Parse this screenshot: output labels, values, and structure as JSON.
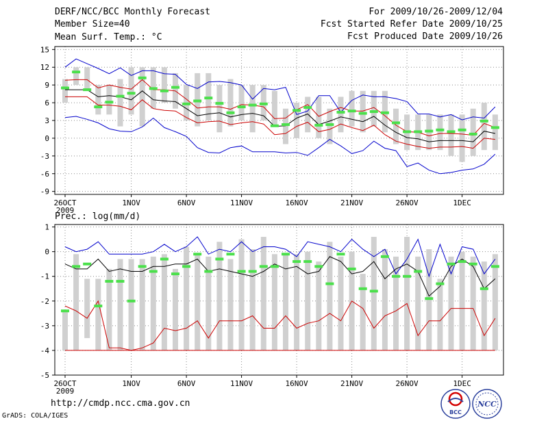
{
  "header": {
    "title": "DERF/NCC/BCC Monthly Forecast",
    "member_size": "Member Size=40",
    "period": "For 2009/10/26-2009/12/04",
    "started": "Fcst Started Refer Date 2009/10/25",
    "produced": "Fcst Produced Date 2009/10/26"
  },
  "footer": {
    "url": "http://cmdp.ncc.cma.gov.cn",
    "grads": "GrADS: COLA/IGES",
    "logo_left": "BCC",
    "logo_right": "NCC"
  },
  "colors": {
    "box": "#d0d0d0",
    "green": "#4be04b",
    "blue": "#0000cc",
    "red": "#cc0000",
    "mean": "#000000",
    "grid": "#888888"
  },
  "chart_data": [
    {
      "type": "line",
      "title": "Mean Surf. Temp.: °C",
      "ylim": [
        -9.5,
        15.5
      ],
      "yticks": [
        15,
        12,
        9,
        6,
        3,
        0,
        -3,
        -6,
        -9
      ],
      "x_days": 40,
      "xticks": [
        {
          "day": 0,
          "label": "26OCT",
          "sub": "2009"
        },
        {
          "day": 6,
          "label": "1NOV"
        },
        {
          "day": 11,
          "label": "6NOV"
        },
        {
          "day": 16,
          "label": "11NOV"
        },
        {
          "day": 21,
          "label": "16NOV"
        },
        {
          "day": 26,
          "label": "21NOV"
        },
        {
          "day": 31,
          "label": "26NOV"
        },
        {
          "day": 36,
          "label": "1DEC"
        }
      ],
      "box_low": [
        6,
        9,
        8,
        4,
        4,
        2,
        4,
        2,
        5,
        6,
        5,
        3,
        2,
        3,
        1,
        2,
        3,
        1,
        3,
        2,
        -1,
        0,
        1,
        0,
        -1,
        1,
        2,
        1,
        2,
        1,
        -1,
        -2,
        -2,
        -2,
        -2,
        -3,
        -4,
        -3,
        -2,
        -2
      ],
      "box_high": [
        10,
        12,
        12,
        9,
        9,
        10,
        12,
        12,
        12,
        12,
        11,
        9,
        11,
        11,
        9,
        10,
        9,
        9,
        9,
        8,
        5,
        6,
        7,
        7,
        5,
        7,
        8,
        8,
        8,
        8,
        5,
        4,
        4,
        4,
        4,
        4,
        4,
        5,
        6,
        4
      ],
      "green": [
        8.5,
        11.2,
        8.2,
        5.3,
        6.1,
        7.1,
        7.6,
        10.2,
        8.4,
        8.0,
        8.6,
        5.8,
        6.3,
        6.8,
        5.9,
        4.3,
        5.3,
        5.6,
        5.8,
        2.1,
        2.3,
        4.7,
        5.2,
        2.2,
        2.3,
        4.4,
        4.6,
        4.2,
        4.5,
        4.3,
        2.6,
        1.1,
        1.1,
        1.2,
        1.4,
        1.1,
        1.4,
        0.7,
        2.9,
        1.8
      ],
      "mean": [
        8.2,
        8.2,
        8.2,
        7.0,
        7.2,
        7.0,
        6.5,
        8.0,
        6.5,
        6.3,
        6.2,
        5.0,
        3.8,
        4.1,
        4.3,
        3.6,
        4.0,
        4.2,
        3.8,
        2.0,
        2.1,
        3.4,
        4.1,
        2.3,
        2.9,
        3.6,
        3.2,
        2.8,
        3.7,
        2.2,
        1.0,
        0.1,
        -0.1,
        -0.6,
        -0.4,
        -0.4,
        -0.4,
        -0.6,
        1.2,
        0.8
      ],
      "upper_red": [
        9.8,
        9.9,
        9.9,
        8.5,
        9.0,
        8.6,
        8.3,
        9.9,
        8.2,
        8.2,
        8.0,
        6.6,
        5.1,
        5.3,
        5.3,
        4.9,
        5.7,
        5.6,
        5.3,
        3.3,
        3.4,
        4.8,
        5.7,
        3.7,
        4.5,
        5.2,
        4.6,
        4.6,
        5.2,
        3.8,
        2.2,
        1.1,
        1.0,
        0.4,
        0.8,
        0.8,
        0.7,
        0.5,
        2.5,
        1.8
      ],
      "lower_red": [
        7.0,
        7.0,
        7.0,
        5.6,
        5.6,
        5.4,
        4.8,
        6.5,
        5.0,
        4.7,
        4.6,
        3.5,
        2.6,
        2.8,
        2.9,
        2.3,
        2.6,
        2.8,
        2.4,
        0.6,
        0.8,
        2.0,
        2.7,
        1.1,
        1.5,
        2.4,
        1.8,
        1.3,
        2.2,
        0.6,
        -0.5,
        -1.0,
        -1.4,
        -1.7,
        -1.5,
        -1.5,
        -1.4,
        -1.7,
        0.0,
        -0.2
      ],
      "upper_blue": [
        12.0,
        13.4,
        12.6,
        11.8,
        10.9,
        11.9,
        10.6,
        11.4,
        11.4,
        10.9,
        10.8,
        9.1,
        8.4,
        9.5,
        9.6,
        9.4,
        9.0,
        6.6,
        8.4,
        8.2,
        8.6,
        4.0,
        4.6,
        7.2,
        7.2,
        4.4,
        6.4,
        7.3,
        7.0,
        7.0,
        6.7,
        6.2,
        4.1,
        4.1,
        3.6,
        4.0,
        3.1,
        3.6,
        3.4,
        5.3
      ],
      "lower_blue": [
        3.5,
        3.7,
        3.2,
        2.6,
        1.6,
        1.2,
        1.1,
        1.9,
        3.4,
        1.8,
        1.1,
        0.3,
        -1.6,
        -2.4,
        -2.5,
        -1.6,
        -1.3,
        -2.3,
        -2.3,
        -2.3,
        -2.5,
        -2.4,
        -2.9,
        -1.6,
        -0.2,
        -1.3,
        -2.6,
        -2.1,
        -0.5,
        -1.7,
        -2.1,
        -4.8,
        -4.2,
        -5.4,
        -6.0,
        -5.8,
        -5.4,
        -5.2,
        -4.4,
        -2.7
      ]
    },
    {
      "type": "line",
      "title": "Prec.: log(mm/d)",
      "ylim": [
        -5,
        1.1
      ],
      "yticks": [
        1,
        0,
        -1,
        -2,
        -3,
        -4,
        -5
      ],
      "x_days": 40,
      "xticks": [
        {
          "day": 0,
          "label": "26OCT",
          "sub": "2009"
        },
        {
          "day": 6,
          "label": "1NOV"
        },
        {
          "day": 11,
          "label": "6NOV"
        },
        {
          "day": 16,
          "label": "11NOV"
        },
        {
          "day": 21,
          "label": "16NOV"
        },
        {
          "day": 26,
          "label": "21NOV"
        },
        {
          "day": 31,
          "label": "26NOV"
        },
        {
          "day": 36,
          "label": "1DEC"
        }
      ],
      "box_low": [
        -4,
        -4,
        -3.5,
        -4,
        -4,
        -4,
        -4,
        -4,
        -4,
        -4,
        -4,
        -4,
        -4,
        -4,
        -4,
        -4,
        -4,
        -4,
        -4,
        -4,
        -4,
        -4,
        -4,
        -4,
        -4,
        -4,
        -4,
        -4,
        -4,
        -4,
        -4,
        -4,
        -4,
        -4,
        -4,
        -4,
        -4,
        -4,
        -4,
        -4
      ],
      "box_high": [
        -2.4,
        -0.1,
        -1.1,
        -1.1,
        -0.7,
        -0.3,
        -0.3,
        -0.3,
        -0.2,
        -0.1,
        -0.7,
        0.2,
        -0.1,
        -0.2,
        0.4,
        -0.3,
        0.5,
        0.1,
        0.6,
        -0.1,
        -0.1,
        -0.1,
        0.0,
        -0.4,
        0.4,
        -0.2,
        0.0,
        -0.9,
        0.6,
        0.1,
        -0.2,
        0.6,
        -0.2,
        0.1,
        -1.1,
        -0.2,
        0.0,
        -0.2,
        -0.4,
        -0.1
      ],
      "green": [
        -2.4,
        -0.6,
        -0.5,
        -2.2,
        -1.2,
        -1.2,
        -2.0,
        -0.6,
        -0.8,
        -0.3,
        -0.9,
        -0.6,
        -0.1,
        -0.8,
        -0.3,
        -0.1,
        -0.8,
        -0.8,
        -0.6,
        -0.6,
        -0.1,
        -0.4,
        -0.4,
        -0.6,
        -1.3,
        -0.1,
        -0.7,
        -1.5,
        -1.6,
        -0.2,
        -1.0,
        -1.0,
        -0.8,
        -1.9,
        -1.3,
        -0.5,
        -0.4,
        -0.5,
        -1.5,
        -0.6
      ],
      "mean": [
        -0.5,
        -0.7,
        -0.7,
        -0.3,
        -0.8,
        -0.7,
        -0.8,
        -0.8,
        -0.6,
        -0.6,
        -0.5,
        -0.5,
        -0.3,
        -0.8,
        -0.7,
        -0.8,
        -0.9,
        -1.0,
        -0.8,
        -0.5,
        -0.7,
        -0.6,
        -0.9,
        -0.8,
        -0.2,
        -0.4,
        -0.9,
        -0.8,
        -0.4,
        -1.1,
        -0.7,
        -0.5,
        -0.8,
        -1.8,
        -1.4,
        -0.6,
        -0.3,
        -0.6,
        -1.5,
        -1.1
      ],
      "upper_blue": [
        0.2,
        0.0,
        0.1,
        0.4,
        -0.1,
        -0.1,
        -0.1,
        -0.1,
        0.0,
        0.3,
        0.0,
        0.2,
        0.6,
        -0.1,
        0.1,
        0.0,
        0.4,
        0.0,
        0.2,
        0.2,
        0.1,
        -0.2,
        0.4,
        0.3,
        0.2,
        0.0,
        0.5,
        0.1,
        -0.2,
        0.1,
        -0.9,
        -0.3,
        0.5,
        -1.0,
        0.3,
        -0.9,
        0.2,
        0.1,
        -0.9,
        -0.3
      ],
      "lower_red": [
        -2.2,
        -2.4,
        -2.7,
        -2.0,
        -3.9,
        -3.9,
        -4.0,
        -3.9,
        -3.7,
        -3.1,
        -3.2,
        -3.1,
        -2.8,
        -3.5,
        -2.8,
        -2.8,
        -2.8,
        -2.6,
        -3.1,
        -3.1,
        -2.6,
        -3.1,
        -2.9,
        -2.8,
        -2.5,
        -2.8,
        -2.0,
        -2.3,
        -3.1,
        -2.6,
        -2.4,
        -2.1,
        -3.4,
        -2.8,
        -2.8,
        -2.3,
        -2.3,
        -2.3,
        -3.4,
        -2.7
      ],
      "floor": -4
    }
  ]
}
